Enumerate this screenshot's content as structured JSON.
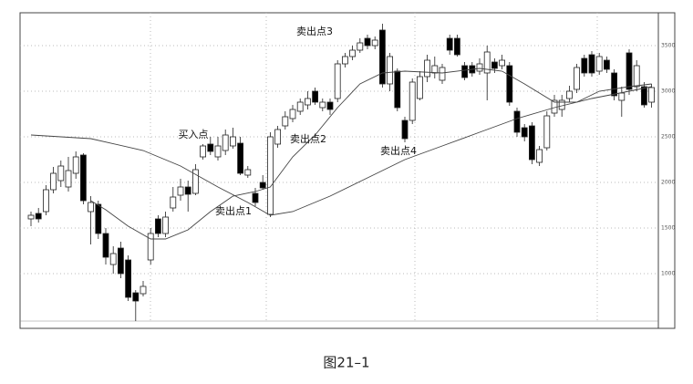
{
  "caption": "图21–1",
  "chart_data": {
    "type": "candlestick",
    "ylim": [
      400,
      3850
    ],
    "yticks": [
      1000,
      1500,
      2000,
      2500,
      3000,
      3500
    ],
    "grid": true,
    "up_color": "#ffffff",
    "down_color": "#000000",
    "open": [
      1600,
      1660,
      1680,
      1920,
      2020,
      1950,
      2100,
      2300,
      1680,
      1760,
      1440,
      1100,
      1280,
      1150,
      790,
      780,
      1150,
      1600,
      1440,
      1720,
      1860,
      1950,
      1880,
      2280,
      2420,
      2280,
      2350,
      2400,
      2430,
      2080,
      1880,
      2000,
      1650,
      2420,
      2620,
      2700,
      2780,
      2850,
      3000,
      2820,
      2880,
      2920,
      3300,
      3380,
      3450,
      3580,
      3500,
      3670,
      3080,
      3220,
      2680,
      2680,
      2920,
      3160,
      3200,
      3120,
      3580,
      3580,
      3280,
      3280,
      3220,
      3200,
      3320,
      3280,
      3280,
      2780,
      2600,
      2620,
      2220,
      2380,
      2760,
      2800,
      2920,
      3020,
      3360,
      3400,
      3220,
      3340,
      3200,
      2900,
      3420,
      3050,
      3050,
      2880
    ],
    "high": [
      1680,
      1720,
      1970,
      2170,
      2240,
      2280,
      2340,
      2320,
      1850,
      1800,
      1500,
      1300,
      1350,
      1200,
      820,
      920,
      1500,
      1640,
      1680,
      1950,
      2040,
      2020,
      2200,
      2420,
      2500,
      2500,
      2580,
      2600,
      2500,
      2180,
      1940,
      2080,
      2550,
      2620,
      2780,
      2850,
      2920,
      3000,
      3040,
      2920,
      2920,
      3340,
      3420,
      3500,
      3580,
      3620,
      3600,
      3740,
      3420,
      3250,
      2720,
      3140,
      3220,
      3400,
      3380,
      3300,
      3620,
      3620,
      3320,
      3320,
      3360,
      3500,
      3360,
      3400,
      3320,
      2820,
      2640,
      2660,
      2400,
      2780,
      2960,
      2960,
      3060,
      3300,
      3400,
      3440,
      3420,
      3380,
      3240,
      3050,
      3460,
      3340,
      3100,
      3080
    ],
    "low": [
      1520,
      1560,
      1640,
      1880,
      1950,
      1900,
      2040,
      1760,
      1320,
      1380,
      1100,
      1000,
      950,
      700,
      480,
      750,
      1100,
      1400,
      1400,
      1680,
      1800,
      1680,
      1860,
      2250,
      2300,
      2240,
      2300,
      2370,
      2080,
      2050,
      1740,
      1920,
      1620,
      2380,
      2580,
      2660,
      2740,
      2800,
      2850,
      2780,
      2740,
      2880,
      3260,
      3340,
      3420,
      3460,
      3460,
      3040,
      3000,
      2780,
      2440,
      2640,
      2900,
      3100,
      3140,
      3080,
      3400,
      3380,
      3120,
      3160,
      3180,
      2900,
      3200,
      3240,
      2840,
      2500,
      2450,
      2200,
      2180,
      2350,
      2720,
      2720,
      2880,
      2980,
      3160,
      3160,
      3180,
      3200,
      2900,
      2720,
      2960,
      3000,
      2820,
      2820
    ],
    "close": [
      1640,
      1600,
      1920,
      2100,
      2180,
      2130,
      2280,
      1800,
      1780,
      1440,
      1180,
      1220,
      1000,
      740,
      700,
      860,
      1440,
      1440,
      1620,
      1840,
      1950,
      1870,
      2140,
      2400,
      2340,
      2400,
      2520,
      2500,
      2100,
      2140,
      1780,
      1940,
      2500,
      2580,
      2720,
      2800,
      2880,
      2920,
      2880,
      2880,
      2800,
      3300,
      3380,
      3450,
      3530,
      3500,
      3560,
      3080,
      3380,
      2820,
      2480,
      3100,
      3160,
      3340,
      3280,
      3260,
      3450,
      3400,
      3150,
      3200,
      3300,
      3430,
      3250,
      3340,
      2880,
      2550,
      2500,
      2250,
      2360,
      2730,
      2900,
      2900,
      3000,
      3260,
      3200,
      3200,
      3380,
      3240,
      2950,
      2980,
      3020,
      3280,
      2850,
      3040
    ],
    "lines": [
      {
        "color": "#444444",
        "x": [
          0,
          8,
          15,
          20,
          25,
          29,
          32,
          35,
          40,
          45,
          50,
          55,
          60,
          65,
          70,
          75,
          80,
          83
        ],
        "values": [
          2520,
          2480,
          2350,
          2180,
          1950,
          1780,
          1640,
          1680,
          1850,
          2050,
          2250,
          2400,
          2550,
          2700,
          2820,
          2920,
          3000,
          3050
        ]
      },
      {
        "color": "#444444",
        "x": [
          8,
          10,
          13,
          16,
          18,
          21,
          24,
          27,
          30,
          32,
          35,
          38,
          41,
          44,
          47,
          50,
          55,
          60,
          63,
          66,
          70,
          73,
          76,
          80,
          83
        ],
        "values": [
          1800,
          1700,
          1520,
          1380,
          1380,
          1480,
          1680,
          1850,
          1900,
          1950,
          2280,
          2520,
          2820,
          3080,
          3200,
          3220,
          3200,
          3250,
          3220,
          3080,
          2880,
          2880,
          3000,
          3050,
          3080
        ]
      }
    ],
    "annotations": [
      "买入点",
      "卖出点1",
      "卖出点2",
      "卖出点3",
      "卖出点4"
    ]
  }
}
